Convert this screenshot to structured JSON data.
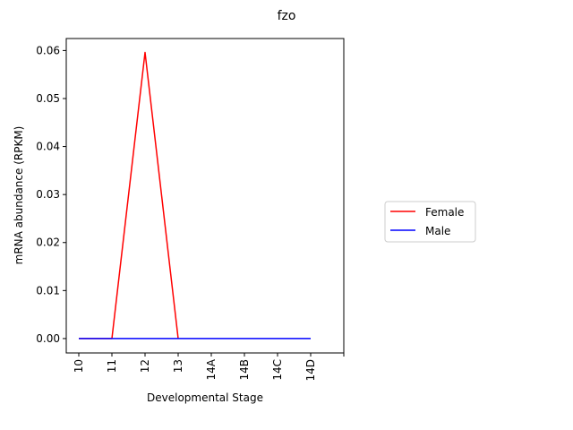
{
  "chart_data": {
    "type": "line",
    "title": "fzo",
    "xlabel": "Developmental Stage",
    "ylabel": "mRNA abundance (RPKM)",
    "categories": [
      "10",
      "11",
      "12",
      "13",
      "14A",
      "14B",
      "14C",
      "14D"
    ],
    "ylim": [
      -0.003,
      0.0625
    ],
    "yticks": [
      "0.00",
      "0.01",
      "0.02",
      "0.03",
      "0.04",
      "0.05",
      "0.06"
    ],
    "ytick_values": [
      0.0,
      0.01,
      0.02,
      0.03,
      0.04,
      0.05,
      0.06
    ],
    "grid": false,
    "legend_position": "right",
    "series": [
      {
        "name": "Female",
        "color": "#ff0000",
        "values": [
          0.0,
          0.0,
          0.0596,
          0.0,
          null,
          null,
          null,
          null
        ]
      },
      {
        "name": "Male",
        "color": "#0000ff",
        "values": [
          0.0,
          0.0,
          0.0,
          0.0,
          0.0,
          0.0,
          0.0,
          0.0
        ]
      }
    ]
  }
}
